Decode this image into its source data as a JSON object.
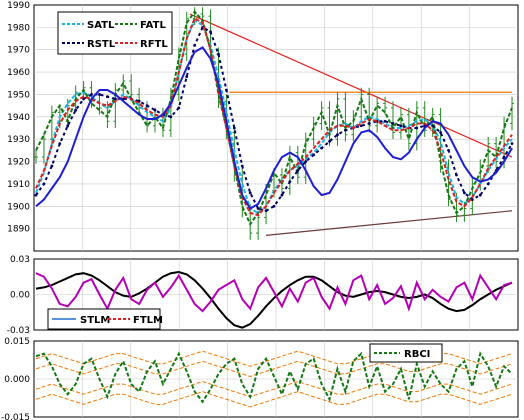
{
  "chart_data": [
    {
      "type": "line",
      "panel": "price",
      "ylim": [
        1880,
        1990
      ],
      "yticks": [
        "1990",
        "1980",
        "1970",
        "1960",
        "1950",
        "1940",
        "1930",
        "1920",
        "1910",
        "1900",
        "1890"
      ],
      "ytick_values": [
        1990,
        1980,
        1970,
        1960,
        1950,
        1940,
        1930,
        1920,
        1910,
        1900,
        1890
      ],
      "grid": true,
      "legend_position": "top-left",
      "x": [
        0,
        8,
        16,
        24,
        32,
        40,
        48,
        56,
        64,
        72,
        80,
        88,
        96,
        104,
        112,
        120,
        128,
        136,
        144,
        152,
        160,
        168,
        176,
        184,
        192,
        200,
        208,
        216,
        224,
        232,
        240,
        248,
        256,
        264,
        272,
        280,
        288,
        296,
        304,
        312,
        320,
        328,
        336,
        344,
        352,
        360,
        368,
        376,
        384,
        392,
        400,
        408,
        416,
        424,
        432,
        440,
        448,
        456,
        464,
        472,
        480
      ],
      "series": [
        {
          "name": "SATL",
          "color": "#19b4e6",
          "dash": "4,2",
          "values": [
            1906,
            1915,
            1928,
            1940,
            1946,
            1950,
            1951,
            1949,
            1946,
            1944,
            1947,
            1950,
            1948,
            1945,
            1942,
            1940,
            1938,
            1944,
            1960,
            1975,
            1983,
            1981,
            1972,
            1958,
            1942,
            1925,
            1910,
            1899,
            1897,
            1900,
            1907,
            1912,
            1916,
            1918,
            1921,
            1924,
            1928,
            1933,
            1936,
            1937,
            1935,
            1938,
            1940,
            1939,
            1937,
            1935,
            1935,
            1936,
            1938,
            1939,
            1936,
            1929,
            1915,
            1904,
            1901,
            1904,
            1910,
            1916,
            1921,
            1926,
            1930
          ]
        },
        {
          "name": "FATL",
          "color": "#147814",
          "dash": "4,2",
          "values": [
            1925,
            1932,
            1940,
            1945,
            1938,
            1948,
            1952,
            1946,
            1943,
            1940,
            1950,
            1955,
            1948,
            1942,
            1936,
            1940,
            1935,
            1948,
            1966,
            1982,
            1987,
            1983,
            1970,
            1950,
            1935,
            1918,
            1900,
            1892,
            1897,
            1905,
            1915,
            1910,
            1922,
            1915,
            1928,
            1935,
            1942,
            1932,
            1945,
            1935,
            1938,
            1948,
            1938,
            1945,
            1942,
            1935,
            1940,
            1930,
            1942,
            1935,
            1940,
            1920,
            1905,
            1897,
            1900,
            1908,
            1915,
            1925,
            1922,
            1935,
            1944
          ]
        },
        {
          "name": "RSTL",
          "color": "#000064",
          "dash": "3,3",
          "values": [
            1905,
            1910,
            1918,
            1928,
            1936,
            1943,
            1948,
            1950,
            1950,
            1949,
            1948,
            1948,
            1948,
            1947,
            1945,
            1943,
            1941,
            1940,
            1944,
            1958,
            1972,
            1980,
            1978,
            1968,
            1952,
            1935,
            1918,
            1906,
            1899,
            1898,
            1900,
            1905,
            1911,
            1916,
            1920,
            1923,
            1926,
            1929,
            1932,
            1934,
            1935,
            1936,
            1937,
            1938,
            1938,
            1937,
            1936,
            1935,
            1935,
            1936,
            1936,
            1933,
            1925,
            1914,
            1906,
            1903,
            1905,
            1910,
            1916,
            1922,
            1928
          ]
        },
        {
          "name": "RFTL",
          "color": "#dc1e1e",
          "dash": "4,2",
          "values": [
            1908,
            1916,
            1927,
            1937,
            1943,
            1947,
            1949,
            1948,
            1946,
            1945,
            1947,
            1949,
            1948,
            1946,
            1943,
            1941,
            1940,
            1945,
            1960,
            1975,
            1984,
            1982,
            1970,
            1952,
            1935,
            1918,
            1904,
            1897,
            1896,
            1900,
            1906,
            1911,
            1916,
            1919,
            1922,
            1926,
            1930,
            1934,
            1936,
            1936,
            1935,
            1937,
            1939,
            1938,
            1936,
            1934,
            1934,
            1935,
            1937,
            1937,
            1934,
            1925,
            1912,
            1902,
            1900,
            1904,
            1910,
            1917,
            1922,
            1927,
            1932
          ]
        },
        {
          "name": "",
          "color": "#1e1ed2",
          "dash": "",
          "values": [
            1900,
            1903,
            1908,
            1913,
            1920,
            1930,
            1940,
            1948,
            1952,
            1952,
            1950,
            1947,
            1944,
            1941,
            1939,
            1939,
            1941,
            1946,
            1954,
            1962,
            1969,
            1971,
            1966,
            1955,
            1938,
            1920,
            1905,
            1899,
            1901,
            1908,
            1916,
            1922,
            1924,
            1922,
            1916,
            1909,
            1905,
            1906,
            1912,
            1920,
            1928,
            1933,
            1934,
            1931,
            1926,
            1922,
            1921,
            1924,
            1930,
            1935,
            1938,
            1937,
            1932,
            1925,
            1918,
            1913,
            1911,
            1912,
            1915,
            1920,
            1926
          ]
        }
      ],
      "candles": [
        1922,
        1930,
        1942,
        1938,
        1945,
        1951,
        1953,
        1947,
        1944,
        1938,
        1952,
        1956,
        1950,
        1944,
        1936,
        1941,
        1934,
        1950,
        1968,
        1984,
        1986,
        1985,
        1968,
        1947,
        1933,
        1914,
        1898,
        1888,
        1895,
        1907,
        1914,
        1908,
        1924,
        1913,
        1930,
        1937,
        1944,
        1930,
        1948,
        1932,
        1940,
        1950,
        1936,
        1946,
        1944,
        1933,
        1941,
        1928,
        1944,
        1934,
        1941,
        1918,
        1903,
        1896,
        1899,
        1910,
        1918,
        1928,
        1920,
        1937,
        1946
      ],
      "lines": [
        {
          "color": "#e61e1e",
          "from": [
            155,
            1986
          ],
          "to": [
            480,
            1922
          ]
        },
        {
          "color": "#6e3c3c",
          "from": [
            232,
            1887
          ],
          "to": [
            480,
            1898
          ]
        },
        {
          "color": "#f07800",
          "from": [
            195,
            1951
          ],
          "to": [
            480,
            1951
          ]
        }
      ]
    },
    {
      "type": "line",
      "panel": "stlm-ftlm",
      "ylim": [
        -0.03,
        0.03
      ],
      "yticks": [
        "0.03",
        "0.00",
        "-0.03"
      ],
      "ytick_values": [
        0.03,
        0.0,
        -0.03
      ],
      "grid": true,
      "legend_position": "bottom-left",
      "x": [
        0,
        8,
        16,
        24,
        32,
        40,
        48,
        56,
        64,
        72,
        80,
        88,
        96,
        104,
        112,
        120,
        128,
        136,
        144,
        152,
        160,
        168,
        176,
        184,
        192,
        200,
        208,
        216,
        224,
        232,
        240,
        248,
        256,
        264,
        272,
        280,
        288,
        296,
        304,
        312,
        320,
        328,
        336,
        344,
        352,
        360,
        368,
        376,
        384,
        392,
        400,
        408,
        416,
        424,
        432,
        440,
        448,
        456,
        464,
        472,
        480
      ],
      "series": [
        {
          "name": "STLM",
          "color": "#000000",
          "dash": "",
          "values": [
            0.005,
            0.006,
            0.008,
            0.011,
            0.014,
            0.017,
            0.018,
            0.016,
            0.012,
            0.007,
            0.002,
            -0.001,
            -0.002,
            0.001,
            0.005,
            0.01,
            0.015,
            0.018,
            0.019,
            0.017,
            0.012,
            0.005,
            -0.003,
            -0.012,
            -0.02,
            -0.026,
            -0.028,
            -0.025,
            -0.018,
            -0.01,
            -0.003,
            0.003,
            0.008,
            0.012,
            0.015,
            0.015,
            0.012,
            0.007,
            0.002,
            -0.001,
            -0.002,
            0.0,
            0.002,
            0.003,
            0.002,
            0.0,
            -0.002,
            -0.003,
            -0.002,
            0.0,
            -0.003,
            -0.008,
            -0.012,
            -0.014,
            -0.013,
            -0.009,
            -0.004,
            0.0,
            0.004,
            0.007,
            0.01
          ]
        },
        {
          "name": "FTLM",
          "color": "#b400b4",
          "dash": "",
          "values": [
            0.018,
            0.015,
            0.005,
            -0.008,
            -0.01,
            -0.002,
            0.01,
            0.013,
            0.0,
            -0.012,
            0.004,
            0.014,
            -0.004,
            -0.008,
            0.004,
            0.01,
            -0.002,
            0.006,
            0.016,
            0.004,
            -0.008,
            -0.014,
            -0.006,
            0.004,
            0.008,
            0.012,
            -0.004,
            -0.012,
            0.006,
            0.014,
            0.002,
            -0.01,
            0.005,
            -0.006,
            0.01,
            0.014,
            -0.002,
            -0.012,
            0.006,
            -0.008,
            0.012,
            0.016,
            -0.004,
            0.008,
            -0.008,
            -0.003,
            0.007,
            -0.012,
            0.01,
            -0.004,
            0.004,
            -0.002,
            -0.006,
            0.006,
            0.01,
            -0.004,
            0.016,
            0.006,
            -0.004,
            0.008,
            0.01
          ]
        }
      ]
    },
    {
      "type": "line",
      "panel": "rbci",
      "ylim": [
        -0.015,
        0.015
      ],
      "yticks": [
        "0.015",
        "0.000",
        "-0.015"
      ],
      "ytick_values": [
        0.015,
        0.0,
        -0.015
      ],
      "grid": true,
      "legend_position": "top-right",
      "x": [
        0,
        8,
        16,
        24,
        32,
        40,
        48,
        56,
        64,
        72,
        80,
        88,
        96,
        104,
        112,
        120,
        128,
        136,
        144,
        152,
        160,
        168,
        176,
        184,
        192,
        200,
        208,
        216,
        224,
        232,
        240,
        248,
        256,
        264,
        272,
        280,
        288,
        296,
        304,
        312,
        320,
        328,
        336,
        344,
        352,
        360,
        368,
        376,
        384,
        392,
        400,
        408,
        416,
        424,
        432,
        440,
        448,
        456,
        464,
        472,
        480
      ],
      "series": [
        {
          "name": "RBCI",
          "color": "#147814",
          "dash": "4,2",
          "values": [
            0.009,
            0.01,
            0.005,
            -0.002,
            -0.006,
            -0.002,
            0.006,
            0.008,
            0.0,
            -0.007,
            0.002,
            0.007,
            -0.002,
            -0.005,
            0.003,
            0.007,
            -0.002,
            0.004,
            0.01,
            0.003,
            -0.005,
            -0.009,
            -0.004,
            0.002,
            0.006,
            0.008,
            -0.002,
            -0.007,
            0.004,
            0.008,
            0.001,
            -0.006,
            0.003,
            -0.004,
            0.006,
            0.008,
            -0.002,
            -0.008,
            0.004,
            -0.005,
            0.007,
            0.01,
            -0.003,
            0.005,
            -0.005,
            -0.002,
            0.004,
            -0.008,
            0.006,
            -0.003,
            0.003,
            -0.002,
            -0.005,
            0.004,
            0.007,
            -0.003,
            0.01,
            0.005,
            -0.003,
            0.005,
            0.002
          ]
        }
      ],
      "bands": {
        "color": "#f07800",
        "offsets": [
          0.008,
          0.004,
          -0.004,
          -0.008
        ],
        "wobble": [
          0.0,
          0.001,
          0.002,
          0.001,
          0.0,
          -0.001,
          -0.002,
          -0.001,
          0.0,
          0.001,
          0.002,
          0.002,
          0.001,
          0.0,
          -0.001,
          -0.002,
          -0.002,
          -0.001,
          0.0,
          0.001,
          0.002,
          0.003,
          0.002,
          0.001,
          0.0,
          -0.001,
          -0.002,
          -0.003,
          -0.002,
          -0.001,
          0.0,
          0.001,
          0.002,
          0.003,
          0.002,
          0.001,
          0.0,
          -0.001,
          -0.002,
          -0.002,
          -0.001,
          0.0,
          0.001,
          0.002,
          0.002,
          0.001,
          0.0,
          -0.001,
          -0.001,
          0.0,
          0.001,
          0.002,
          0.002,
          0.001,
          0.0,
          -0.001,
          -0.002,
          -0.001,
          0.0,
          0.001,
          0.002
        ]
      }
    }
  ]
}
